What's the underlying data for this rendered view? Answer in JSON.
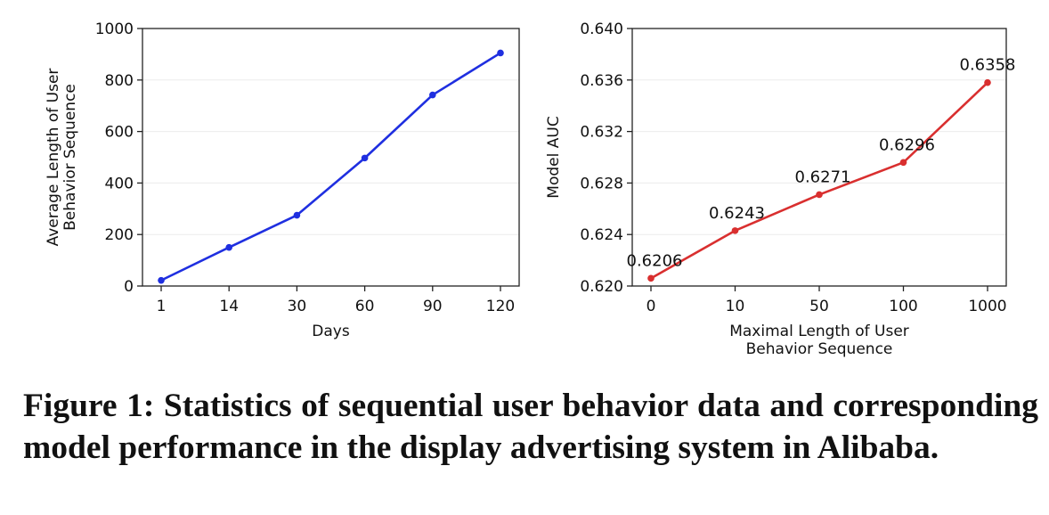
{
  "chart_data": [
    {
      "type": "line",
      "categories": [
        "1",
        "14",
        "30",
        "60",
        "90",
        "120"
      ],
      "series": [
        {
          "values": [
            22,
            150,
            275,
            497,
            742,
            905
          ],
          "color": "#1f2fe0"
        }
      ],
      "xlabel": "Days",
      "ylabel": [
        "Average Length of User",
        "Behavior Sequence"
      ],
      "ylim": [
        0,
        1000
      ],
      "yticks": [
        "0",
        "200",
        "400",
        "600",
        "800",
        "1000"
      ],
      "grid": "horizontal light",
      "data_labels": []
    },
    {
      "type": "line",
      "categories": [
        "0",
        "10",
        "50",
        "100",
        "1000"
      ],
      "series": [
        {
          "values": [
            0.6206,
            0.6243,
            0.6271,
            0.6296,
            0.6358
          ],
          "color": "#d92f2f"
        }
      ],
      "xlabel": [
        "Maximal Length of User",
        "Behavior Sequence"
      ],
      "ylabel": [
        "Model AUC"
      ],
      "ylim": [
        0.62,
        0.64
      ],
      "yticks": [
        "0.620",
        "0.624",
        "0.628",
        "0.632",
        "0.636",
        "0.640"
      ],
      "grid": "horizontal light",
      "data_labels": [
        "0.6206",
        "0.6243",
        "0.6271",
        "0.6296",
        "0.6358"
      ]
    }
  ],
  "caption": "Figure 1: Statistics of sequential user behavior data and corresponding model performance in the display advertising system in Alibaba."
}
